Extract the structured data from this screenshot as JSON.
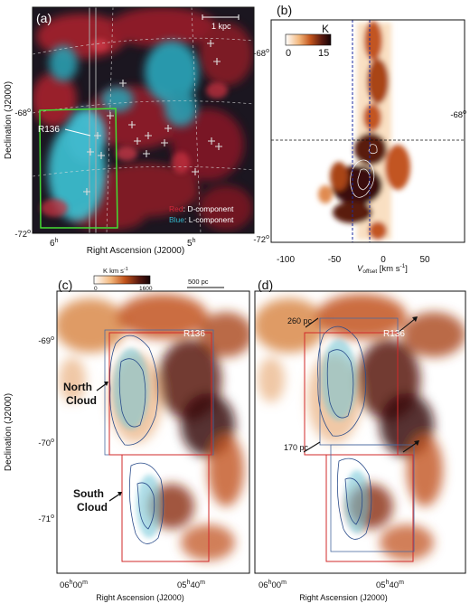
{
  "panel_a": {
    "label": "(a)",
    "scalebar": "1 kpc",
    "r136": "R136",
    "legend_red_key": "Red",
    "legend_red_text": ": D-component",
    "legend_blue_key": "Blue",
    "legend_blue_text": ": L-component",
    "ylabel": "Declination (J2000)",
    "xlabel": "Right Ascension (J2000)",
    "yticks": [
      {
        "text": "-68",
        "sup": "o"
      },
      {
        "text": "-72",
        "sup": "o"
      }
    ],
    "xticks": [
      {
        "text": "6",
        "sup": "h"
      },
      {
        "text": "5",
        "sup": "h"
      }
    ],
    "colors": {
      "red": "#d0283a",
      "blue": "#34b9cc",
      "green": "#44dd33",
      "bg": "#1b1620"
    }
  },
  "panel_b": {
    "label": "(b)",
    "colorbar_unit": "K",
    "colorbar_min": "0",
    "colorbar_max": "15",
    "xlabel_v": "V",
    "xlabel_sub": "offset",
    "xlabel_unit": " [km s",
    "xlabel_exp": "-1",
    "xlabel_close": "]",
    "xticks": [
      "-100",
      "-50",
      "0",
      "50"
    ],
    "yticks": [
      {
        "text": "-68",
        "sup": "o"
      },
      {
        "text": "-72",
        "sup": "o"
      }
    ]
  },
  "panel_c": {
    "label": "(c)",
    "colorbar_unit": "K km s",
    "colorbar_exp": "-1",
    "colorbar_min": "0",
    "colorbar_max": "1600",
    "scalebar": "500 pc",
    "north_cloud_1": "North",
    "north_cloud_2": "Cloud",
    "south_cloud_1": "South",
    "south_cloud_2": "Cloud",
    "r136": "R136",
    "ylabel": "Declination (J2000)",
    "xlabel": "Right Ascension (J2000)",
    "yticks": [
      {
        "text": "-69",
        "sup": "o"
      },
      {
        "text": "-70",
        "sup": "o"
      },
      {
        "text": "-71",
        "sup": "o"
      }
    ],
    "xticks": [
      {
        "a": "06",
        "b": "h",
        "c": "00",
        "d": "m"
      },
      {
        "a": "05",
        "b": "h",
        "c": "40",
        "d": "m"
      }
    ]
  },
  "panel_d": {
    "label": "(d)",
    "annot_260": "260 pc",
    "annot_170": "170 pc",
    "r136": "R136",
    "xlabel": "Right Ascension (J2000)",
    "xticks": [
      {
        "a": "06",
        "b": "h",
        "c": "00",
        "d": "m"
      },
      {
        "a": "05",
        "b": "h",
        "c": "40",
        "d": "m"
      }
    ]
  }
}
